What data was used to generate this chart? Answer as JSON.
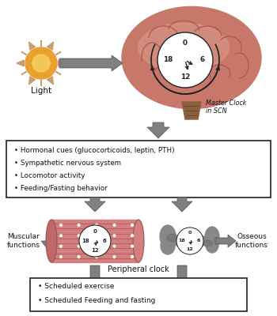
{
  "bg_color": "#ffffff",
  "box1_text": [
    "• Hormonal cues (glucocorticoids, leptin, PTH)",
    "• Sympathetic nervous system",
    "• Locomotor activity",
    "• Feeding/Fasting behavior"
  ],
  "box2_text": [
    "• Scheduled exercise",
    "• Scheduled Feeding and fasting"
  ],
  "light_label": "Light",
  "master_clock_label": "Master Clock\nin SCN",
  "peripheral_clock_label": "Peripheral clock",
  "muscular_label": "Muscular\nfunctions",
  "osseous_label": "Osseous\nfunctions",
  "brain_color": "#c8786a",
  "brain_dark": "#b05848",
  "brain_light": "#e0a898",
  "stem_color": "#8B6040",
  "muscle_color": "#d48080",
  "muscle_stripe": "#b86060",
  "muscle_light": "#e8a0a0",
  "bone_color": "#888888",
  "bone_dark": "#606060",
  "clock_face_color": "#ffffff",
  "clock_border": "#222222",
  "sun_body": "#e8a030",
  "sun_inner": "#f8d060",
  "sun_ray": "#c8a070",
  "arrow_fill": "#808080",
  "arrow_dark": "#505050",
  "text_color": "#111111",
  "box_edge_color": "#333333"
}
